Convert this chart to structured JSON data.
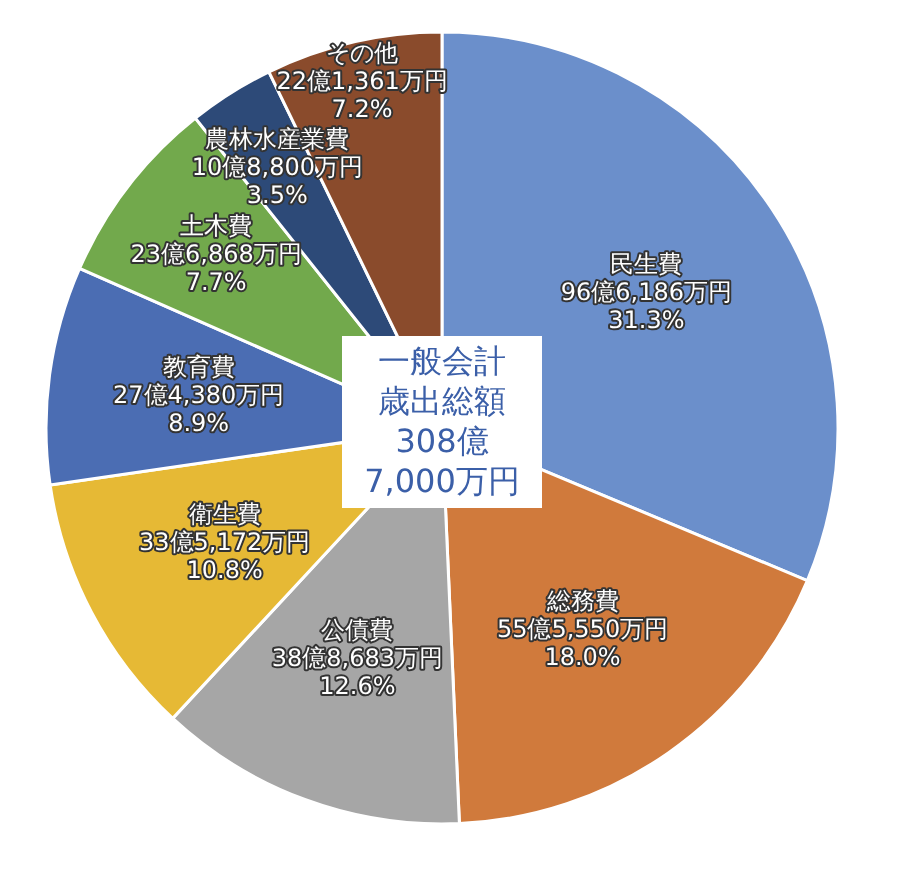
{
  "chart_data": {
    "type": "pie",
    "title": "一般会計歳出総額",
    "subtitle": "308億7,000万円",
    "categories": [
      "民生費",
      "総務費",
      "公債費",
      "衛生費",
      "教育費",
      "土木費",
      "農林水産業費",
      "その他"
    ],
    "values": [
      31.3,
      18.0,
      12.6,
      10.8,
      8.9,
      7.7,
      3.5,
      7.2
    ],
    "value_labels": [
      "96億6,186万円\n31.3%",
      "55億5,550万円\n18.0%",
      "38億8,683万円\n12.6%",
      "33億5,172万円\n10.8%",
      "27億4,380万円\n8.9%",
      "23億6,868万円\n7.7%",
      "10億8,800万円\n3.5%",
      "22億1,361万円\n7.2%"
    ],
    "colors": [
      "#6b8fcb",
      "#d07a3c",
      "#a6a6a6",
      "#e6b935",
      "#4b6db3",
      "#72a94c",
      "#2d4a78",
      "#8a4b2c"
    ]
  }
}
